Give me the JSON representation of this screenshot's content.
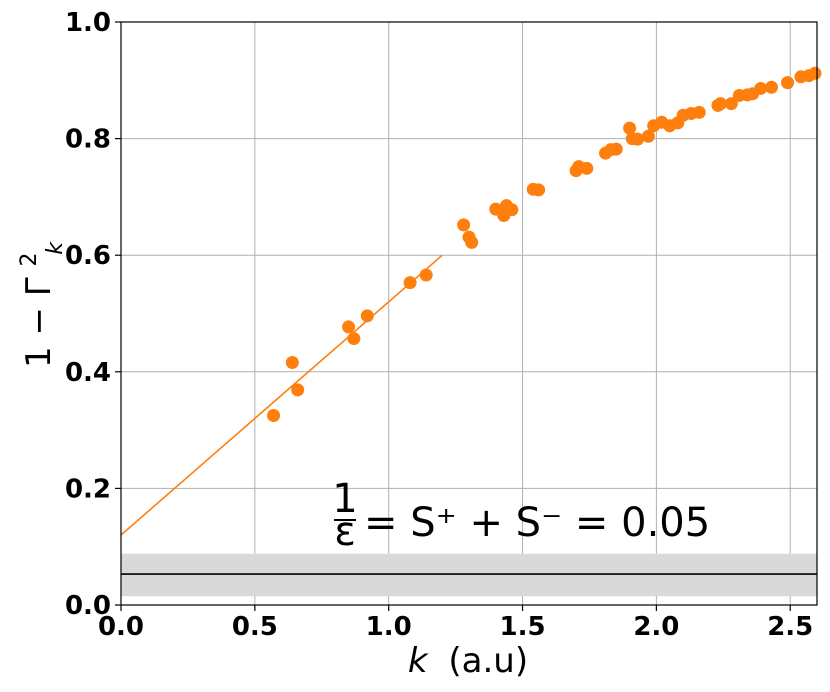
{
  "chart_data": {
    "type": "scatter",
    "xlabel_var": "k",
    "xlabel_unit": "(a.u)",
    "ylabel_main": "1 − Γ",
    "ylabel_sup": "2",
    "ylabel_sub": "k",
    "xlim": [
      0.0,
      2.6
    ],
    "ylim": [
      0.0,
      1.0
    ],
    "xticks": [
      "0.0",
      "0.5",
      "1.0",
      "1.5",
      "2.0",
      "2.5"
    ],
    "yticks": [
      "0.0",
      "0.2",
      "0.4",
      "0.6",
      "0.8",
      "1.0"
    ],
    "grid": true,
    "colors": {
      "points": "#ff7f0e",
      "fit_line": "#ff7f0e",
      "band": "#d9d9d9",
      "ref_line": "#000000"
    },
    "annotation": {
      "frac_num": "1",
      "frac_den": "ε",
      "equation": "= S⁺ + S⁻ = 0.05"
    },
    "fit_line": {
      "intercept": 0.12,
      "slope": 0.4,
      "x_start": 0.0,
      "x_end": 1.2
    },
    "reference_line": {
      "y": 0.053,
      "band": [
        0.015,
        0.088
      ]
    },
    "points": [
      {
        "x": 0.57,
        "y": 0.325
      },
      {
        "x": 0.64,
        "y": 0.416
      },
      {
        "x": 0.66,
        "y": 0.369
      },
      {
        "x": 0.85,
        "y": 0.477
      },
      {
        "x": 0.87,
        "y": 0.457
      },
      {
        "x": 0.92,
        "y": 0.496
      },
      {
        "x": 1.08,
        "y": 0.553
      },
      {
        "x": 1.14,
        "y": 0.566
      },
      {
        "x": 1.28,
        "y": 0.652
      },
      {
        "x": 1.3,
        "y": 0.631
      },
      {
        "x": 1.31,
        "y": 0.622
      },
      {
        "x": 1.4,
        "y": 0.679
      },
      {
        "x": 1.42,
        "y": 0.677
      },
      {
        "x": 1.43,
        "y": 0.668
      },
      {
        "x": 1.44,
        "y": 0.685
      },
      {
        "x": 1.46,
        "y": 0.678
      },
      {
        "x": 1.54,
        "y": 0.713
      },
      {
        "x": 1.56,
        "y": 0.712
      },
      {
        "x": 1.7,
        "y": 0.745
      },
      {
        "x": 1.71,
        "y": 0.752
      },
      {
        "x": 1.74,
        "y": 0.749
      },
      {
        "x": 1.81,
        "y": 0.775
      },
      {
        "x": 1.83,
        "y": 0.781
      },
      {
        "x": 1.85,
        "y": 0.782
      },
      {
        "x": 1.9,
        "y": 0.818
      },
      {
        "x": 1.91,
        "y": 0.8
      },
      {
        "x": 1.93,
        "y": 0.799
      },
      {
        "x": 1.97,
        "y": 0.804
      },
      {
        "x": 1.99,
        "y": 0.822
      },
      {
        "x": 2.02,
        "y": 0.828
      },
      {
        "x": 2.05,
        "y": 0.822
      },
      {
        "x": 2.08,
        "y": 0.827
      },
      {
        "x": 2.1,
        "y": 0.84
      },
      {
        "x": 2.13,
        "y": 0.843
      },
      {
        "x": 2.16,
        "y": 0.845
      },
      {
        "x": 2.23,
        "y": 0.857
      },
      {
        "x": 2.24,
        "y": 0.86
      },
      {
        "x": 2.28,
        "y": 0.86
      },
      {
        "x": 2.31,
        "y": 0.874
      },
      {
        "x": 2.34,
        "y": 0.875
      },
      {
        "x": 2.36,
        "y": 0.877
      },
      {
        "x": 2.39,
        "y": 0.886
      },
      {
        "x": 2.43,
        "y": 0.888
      },
      {
        "x": 2.49,
        "y": 0.896
      },
      {
        "x": 2.54,
        "y": 0.906
      },
      {
        "x": 2.57,
        "y": 0.908
      },
      {
        "x": 2.6,
        "y": 0.912
      }
    ]
  }
}
